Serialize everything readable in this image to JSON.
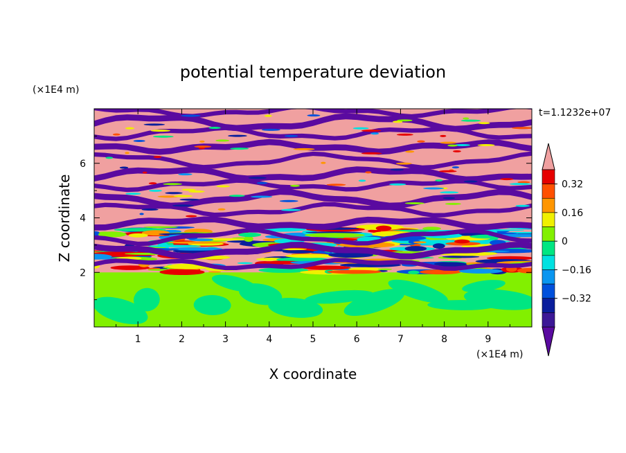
{
  "chart_data": {
    "type": "heatmap",
    "title": "potential temperature deviation",
    "xlabel": "X coordinate",
    "ylabel": "Z coordinate",
    "x_unit": "(×1E4 m)",
    "y_unit": "(×1E4 m)",
    "time_label": "t=1.1232e+07",
    "xlim": [
      0,
      10
    ],
    "ylim": [
      0,
      8
    ],
    "x_ticks": [
      "1",
      "2",
      "3",
      "4",
      "5",
      "6",
      "7",
      "8",
      "9"
    ],
    "y_ticks": [
      "2",
      "4",
      "6"
    ],
    "colorbar": {
      "levels": [
        -0.48,
        -0.4,
        -0.32,
        -0.24,
        -0.16,
        -0.08,
        0,
        0.08,
        0.16,
        0.24,
        0.32,
        0.4,
        0.48
      ],
      "colors": [
        "#5a0aa0",
        "#3c1896",
        "#0a1e9c",
        "#0050dc",
        "#0a96f0",
        "#00e1e1",
        "#00e682",
        "#82f000",
        "#f0f000",
        "#ff9600",
        "#ff5000",
        "#e60000",
        "#f0a0a0"
      ],
      "tick_labels": [
        "0.32",
        "0.16",
        "0",
        "−0.16",
        "−0.32"
      ],
      "extend": "both"
    },
    "field_description_bands": [
      {
        "z_range": [
          0,
          2
        ],
        "dominant": "#82f000",
        "secondary": "#00e682"
      },
      {
        "z_range": [
          2,
          4
        ],
        "dominant": "mixed",
        "secondary": "turbulent"
      },
      {
        "z_range": [
          4,
          8
        ],
        "dominant": "#f0a0a0",
        "secondary": "#5a0aa0"
      }
    ]
  }
}
